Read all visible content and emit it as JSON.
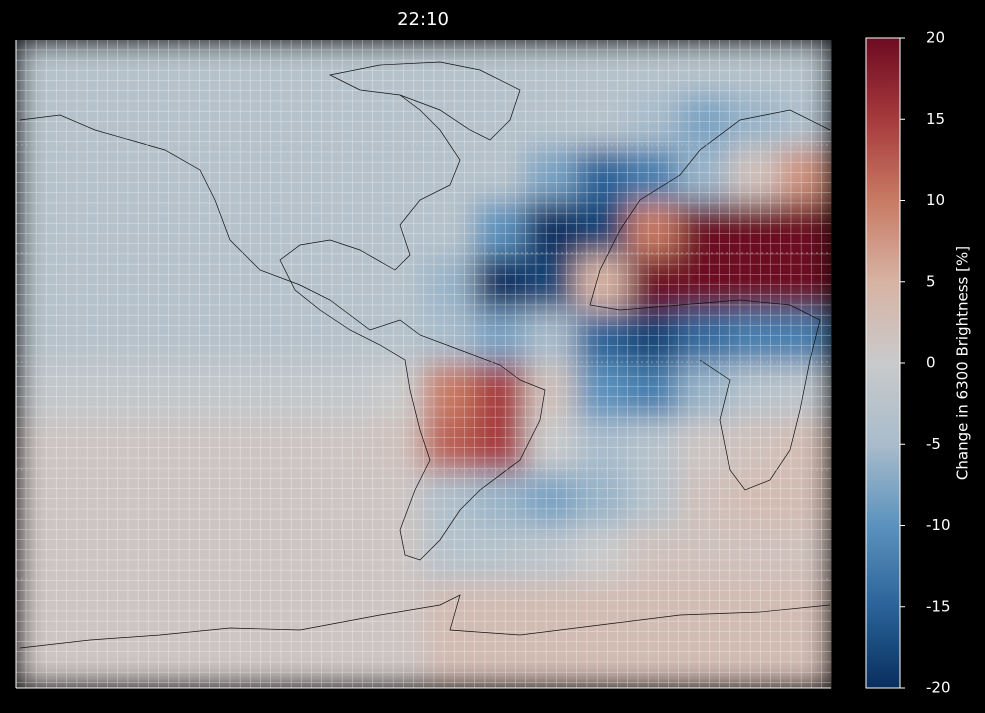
{
  "chart_data": {
    "type": "heatmap",
    "title": "22:10",
    "colorbar_label": "Change in 6300 Brightness [%]",
    "zlim": [
      -20,
      20
    ],
    "zticks": [
      -20,
      -15,
      -10,
      -5,
      0,
      5,
      10,
      15,
      20
    ],
    "colormap": [
      "#082f5e",
      "#2a6399",
      "#5b92bd",
      "#a9bccb",
      "#c9cacb",
      "#d7b3a3",
      "#c87a64",
      "#a63a3c",
      "#6d0b22"
    ],
    "z": [
      [
        -3,
        -3,
        -3,
        -3,
        -3,
        -3,
        -3,
        -3,
        -3,
        -3,
        -3,
        -3,
        -3,
        -3,
        -3,
        -3
      ],
      [
        -3,
        -3,
        -3,
        -3,
        -3,
        -3,
        -3,
        -3,
        -3,
        -3,
        -3,
        -3,
        -5,
        -8,
        -6,
        -4
      ],
      [
        -3,
        -3,
        -3,
        -3,
        -3,
        -3,
        -3,
        -3,
        -3,
        -3,
        -8,
        -15,
        -12,
        -6,
        2,
        8
      ],
      [
        -3,
        -3,
        -3,
        -3,
        -3,
        -3,
        -3,
        -3,
        -3,
        -10,
        -20,
        -18,
        10,
        20,
        20,
        20
      ],
      [
        -3,
        -3,
        -3,
        -3,
        -3,
        -3,
        -3,
        -3,
        -6,
        -20,
        -18,
        5,
        20,
        20,
        20,
        20
      ],
      [
        -3,
        -3,
        -3,
        -3,
        -3,
        -3,
        -3,
        -3,
        -5,
        -8,
        -5,
        -15,
        -18,
        -14,
        -12,
        -12
      ],
      [
        -1,
        -1,
        -1,
        -1,
        -1,
        -1,
        -1,
        0,
        10,
        15,
        2,
        -10,
        -12,
        -6,
        -3,
        -2
      ],
      [
        1,
        1,
        1,
        1,
        1,
        1,
        1,
        2,
        12,
        15,
        0,
        -5,
        -3,
        1,
        2,
        3
      ],
      [
        1,
        1,
        1,
        1,
        1,
        1,
        1,
        1,
        -4,
        -6,
        -8,
        -6,
        -3,
        2,
        3,
        3
      ],
      [
        1,
        1,
        1,
        1,
        1,
        1,
        1,
        1,
        -3,
        -3,
        -2,
        0,
        2,
        2,
        2,
        2
      ],
      [
        1,
        1,
        1,
        1,
        1,
        1,
        1,
        1,
        3,
        3,
        3,
        3,
        3,
        3,
        3,
        3
      ],
      [
        1,
        1,
        1,
        1,
        1,
        1,
        1,
        1,
        3,
        3,
        3,
        3,
        3,
        3,
        3,
        3
      ]
    ]
  }
}
